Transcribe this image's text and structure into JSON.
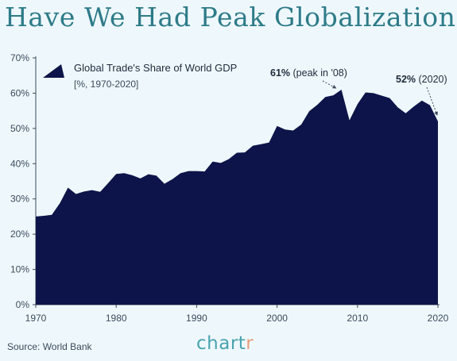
{
  "title": "Have We Had Peak Globalization?",
  "source": "Source: World Bank",
  "logo": {
    "text": "chart",
    "accent": "r"
  },
  "colors": {
    "fill": "#0d1449",
    "title": "#2e7b89",
    "axis": "#3c4a5c",
    "background": "#eef8fc",
    "logo_accent": "#e99d7c"
  },
  "chart_data": {
    "type": "area",
    "series": [
      {
        "name": "Global Trade's Share of World GDP",
        "x": [
          1970,
          1971,
          1972,
          1973,
          1974,
          1975,
          1976,
          1977,
          1978,
          1979,
          1980,
          1981,
          1982,
          1983,
          1984,
          1985,
          1986,
          1987,
          1988,
          1989,
          1990,
          1991,
          1992,
          1993,
          1994,
          1995,
          1996,
          1997,
          1998,
          1999,
          2000,
          2001,
          2002,
          2003,
          2004,
          2005,
          2006,
          2007,
          2008,
          2009,
          2010,
          2011,
          2012,
          2013,
          2014,
          2015,
          2016,
          2017,
          2018,
          2019,
          2020
        ],
        "values": [
          25.0,
          25.2,
          25.5,
          28.8,
          33.2,
          31.4,
          32.1,
          32.5,
          32.0,
          34.5,
          37.1,
          37.3,
          36.7,
          35.8,
          37.0,
          36.6,
          34.3,
          35.6,
          37.3,
          37.9,
          37.9,
          37.8,
          40.6,
          40.2,
          41.3,
          43.1,
          43.2,
          45.1,
          45.5,
          46.0,
          50.7,
          49.7,
          49.4,
          51.1,
          54.9,
          56.7,
          58.9,
          59.4,
          61.0,
          52.3,
          56.9,
          60.2,
          60.0,
          59.3,
          58.6,
          56.0,
          54.3,
          56.2,
          57.9,
          56.6,
          52.0
        ]
      }
    ],
    "legend_label": "Global Trade's Share of World GDP",
    "legend_sublabel": "[%, 1970-2020]",
    "x_ticks": [
      1970,
      1980,
      1990,
      2000,
      2010,
      2020
    ],
    "y_ticks": [
      "0%",
      "10%",
      "20%",
      "30%",
      "40%",
      "50%",
      "60%",
      "70%"
    ],
    "xlim": [
      1970,
      2020
    ],
    "ylim": [
      0,
      70
    ],
    "grid": false,
    "legend_position": "top-left",
    "annotations": [
      {
        "bold": "61%",
        "rest": " (peak in '08)",
        "x": 2008,
        "y": 61
      },
      {
        "bold": "52%",
        "rest": " (2020)",
        "x": 2020,
        "y": 52
      }
    ]
  }
}
